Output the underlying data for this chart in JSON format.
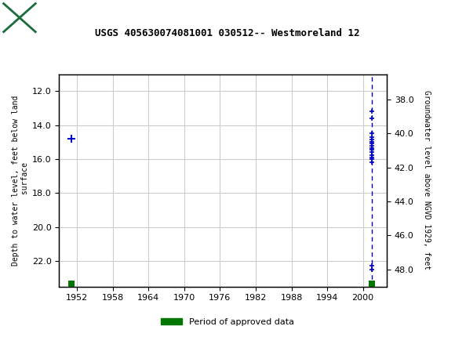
{
  "title": "USGS 405630074081001 030512-- Westmoreland 12",
  "ylabel_left": "Depth to water level, feet below land\n surface",
  "ylabel_right": "Groundwater level above NGVD 1929, feet",
  "xlim": [
    1949,
    2004
  ],
  "ylim_left": [
    11.0,
    23.5
  ],
  "ylim_right": [
    36.5,
    49.0
  ],
  "yticks_left": [
    12.0,
    14.0,
    16.0,
    18.0,
    20.0,
    22.0
  ],
  "yticks_right": [
    38.0,
    40.0,
    42.0,
    44.0,
    46.0,
    48.0
  ],
  "xticks": [
    1952,
    1958,
    1964,
    1970,
    1976,
    1982,
    1988,
    1994,
    2000
  ],
  "header_color": "#1b6b3a",
  "grid_color": "#cccccc",
  "data_color_blue": "#0000cc",
  "data_color_green": "#007700",
  "single_point_1951_year": 1951.0,
  "single_point_1951_depth": 14.8,
  "green_bar_1951_year": 1951.0,
  "cluster_year": 2001.5,
  "cluster_depths": [
    13.2,
    13.6,
    14.5,
    14.7,
    14.85,
    15.0,
    15.1,
    15.2,
    15.35,
    15.45,
    15.6,
    15.75,
    15.9,
    16.0,
    16.2,
    22.3,
    22.5
  ],
  "green_bar_2001_year": 2001.5,
  "green_bar_bottom_depth": 23.35,
  "legend_label": "Period of approved data"
}
